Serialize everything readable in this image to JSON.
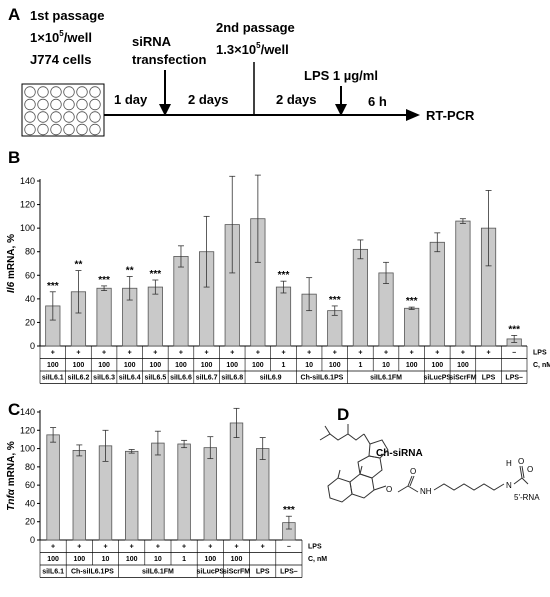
{
  "panel_a": {
    "letter": "A",
    "step1_line1": "1st passage",
    "step1_line2": "1×10",
    "step1_sup": "5",
    "step1_line2b": "/well",
    "step1_line3": "J774 cells",
    "step2_line1": "siRNA",
    "step2_line2": "transfection",
    "step3_line1": "2nd passage",
    "step3_line2": "1.3×10",
    "step3_sup": "5",
    "step3_line2b": "/well",
    "step4_label": "LPS 1 µg/ml",
    "interval1": "1 day",
    "interval2": "2 days",
    "interval3": "2 days",
    "interval4": "6 h",
    "endpoint": "RT-PCR"
  },
  "chart_data": [
    {
      "panel": "B",
      "type": "bar",
      "ylabel_italic": "Il6",
      "ylabel_rest": " mRNA, %",
      "ylim": [
        0,
        140
      ],
      "yticks": [
        0,
        20,
        40,
        60,
        80,
        100,
        120,
        140
      ],
      "bars": [
        {
          "value": 34,
          "err": 12,
          "sig": "***"
        },
        {
          "value": 46,
          "err": 18,
          "sig": "**"
        },
        {
          "value": 49,
          "err": 2,
          "sig": "***"
        },
        {
          "value": 49,
          "err": 10,
          "sig": "**"
        },
        {
          "value": 50,
          "err": 6,
          "sig": "***"
        },
        {
          "value": 76,
          "err": 9,
          "sig": ""
        },
        {
          "value": 80,
          "err": 30,
          "sig": ""
        },
        {
          "value": 103,
          "err": 41,
          "sig": ""
        },
        {
          "value": 108,
          "err": 37,
          "sig": ""
        },
        {
          "value": 50,
          "err": 5,
          "sig": "***"
        },
        {
          "value": 44,
          "err": 14,
          "sig": ""
        },
        {
          "value": 30,
          "err": 4,
          "sig": "***"
        },
        {
          "value": 82,
          "err": 8,
          "sig": ""
        },
        {
          "value": 62,
          "err": 9,
          "sig": ""
        },
        {
          "value": 32,
          "err": 1,
          "sig": "***"
        },
        {
          "value": 88,
          "err": 8,
          "sig": ""
        },
        {
          "value": 106,
          "err": 2,
          "sig": ""
        },
        {
          "value": 100,
          "err": 32,
          "sig": ""
        },
        {
          "value": 6,
          "err": 3,
          "sig": "***"
        }
      ],
      "row_lps": [
        "+",
        "+",
        "+",
        "+",
        "+",
        "+",
        "+",
        "+",
        "+",
        "+",
        "+",
        "+",
        "+",
        "+",
        "+",
        "+",
        "+",
        "+",
        "–"
      ],
      "row_c": [
        "100",
        "100",
        "100",
        "100",
        "100",
        "100",
        "100",
        "100",
        "100",
        "1",
        "10",
        "100",
        "1",
        "10",
        "100",
        "100",
        "100",
        "",
        ""
      ],
      "row_lps_label": "LPS",
      "row_c_label": "C, nM",
      "groups": [
        {
          "label": "siIL6.1",
          "span": 1
        },
        {
          "label": "siIL6.2",
          "span": 1
        },
        {
          "label": "siIL6.3",
          "span": 1
        },
        {
          "label": "siIL6.4",
          "span": 1
        },
        {
          "label": "siIL6.5",
          "span": 1
        },
        {
          "label": "siIL6.6",
          "span": 1
        },
        {
          "label": "siIL6.7",
          "span": 1
        },
        {
          "label": "siIL6.8",
          "span": 1
        },
        {
          "label": "siIL6.9",
          "span": 2
        },
        {
          "label": "Ch-siIL6.1PS",
          "span": 2
        },
        {
          "label": "siIL6.1FM",
          "span": 3
        },
        {
          "label": "siLucPS",
          "span": 1
        },
        {
          "label": "siScrFM",
          "span": 1
        },
        {
          "label": "LPS",
          "span": 1
        },
        {
          "label": "LPS–",
          "span": 1
        }
      ]
    },
    {
      "panel": "C",
      "type": "bar",
      "ylabel_italic": "Tnfα",
      "ylabel_rest": " mRNA, %",
      "ylim": [
        0,
        140
      ],
      "yticks": [
        0,
        20,
        40,
        60,
        80,
        100,
        120,
        140
      ],
      "bars": [
        {
          "value": 115,
          "err": 8,
          "sig": ""
        },
        {
          "value": 98,
          "err": 6,
          "sig": ""
        },
        {
          "value": 103,
          "err": 17,
          "sig": ""
        },
        {
          "value": 97,
          "err": 2,
          "sig": ""
        },
        {
          "value": 106,
          "err": 13,
          "sig": ""
        },
        {
          "value": 105,
          "err": 4,
          "sig": ""
        },
        {
          "value": 101,
          "err": 12,
          "sig": ""
        },
        {
          "value": 128,
          "err": 16,
          "sig": ""
        },
        {
          "value": 100,
          "err": 12,
          "sig": ""
        },
        {
          "value": 19,
          "err": 7,
          "sig": "***"
        }
      ],
      "row_lps": [
        "+",
        "+",
        "+",
        "+",
        "+",
        "+",
        "+",
        "+",
        "+",
        "–"
      ],
      "row_c": [
        "100",
        "100",
        "10",
        "100",
        "10",
        "1",
        "100",
        "100",
        "",
        ""
      ],
      "row_lps_label": "LPS",
      "row_c_label": "C, nM",
      "groups": [
        {
          "label": "siIL6.1",
          "span": 1
        },
        {
          "label": "Ch-siIL6.1PS",
          "span": 2
        },
        {
          "label": "siIL6.1FM",
          "span": 3
        },
        {
          "label": "siLucPS",
          "span": 1
        },
        {
          "label": "siScrFM",
          "span": 1
        },
        {
          "label": "LPS",
          "span": 1
        },
        {
          "label": "LPS–",
          "span": 1
        }
      ]
    }
  ],
  "panel_d": {
    "letter": "D",
    "label": "Ch-siRNA",
    "atom_o1": "O",
    "atom_o2": "O",
    "atom_nh1": "NH",
    "atom_h": "H",
    "atom_n": "N",
    "atom_o3": "O",
    "atom_o4": "O",
    "rna_end": "5'-RNA"
  },
  "colors": {
    "bar_fill": "#c9c9c9",
    "bar_stroke": "#555555",
    "axis": "#000000"
  }
}
